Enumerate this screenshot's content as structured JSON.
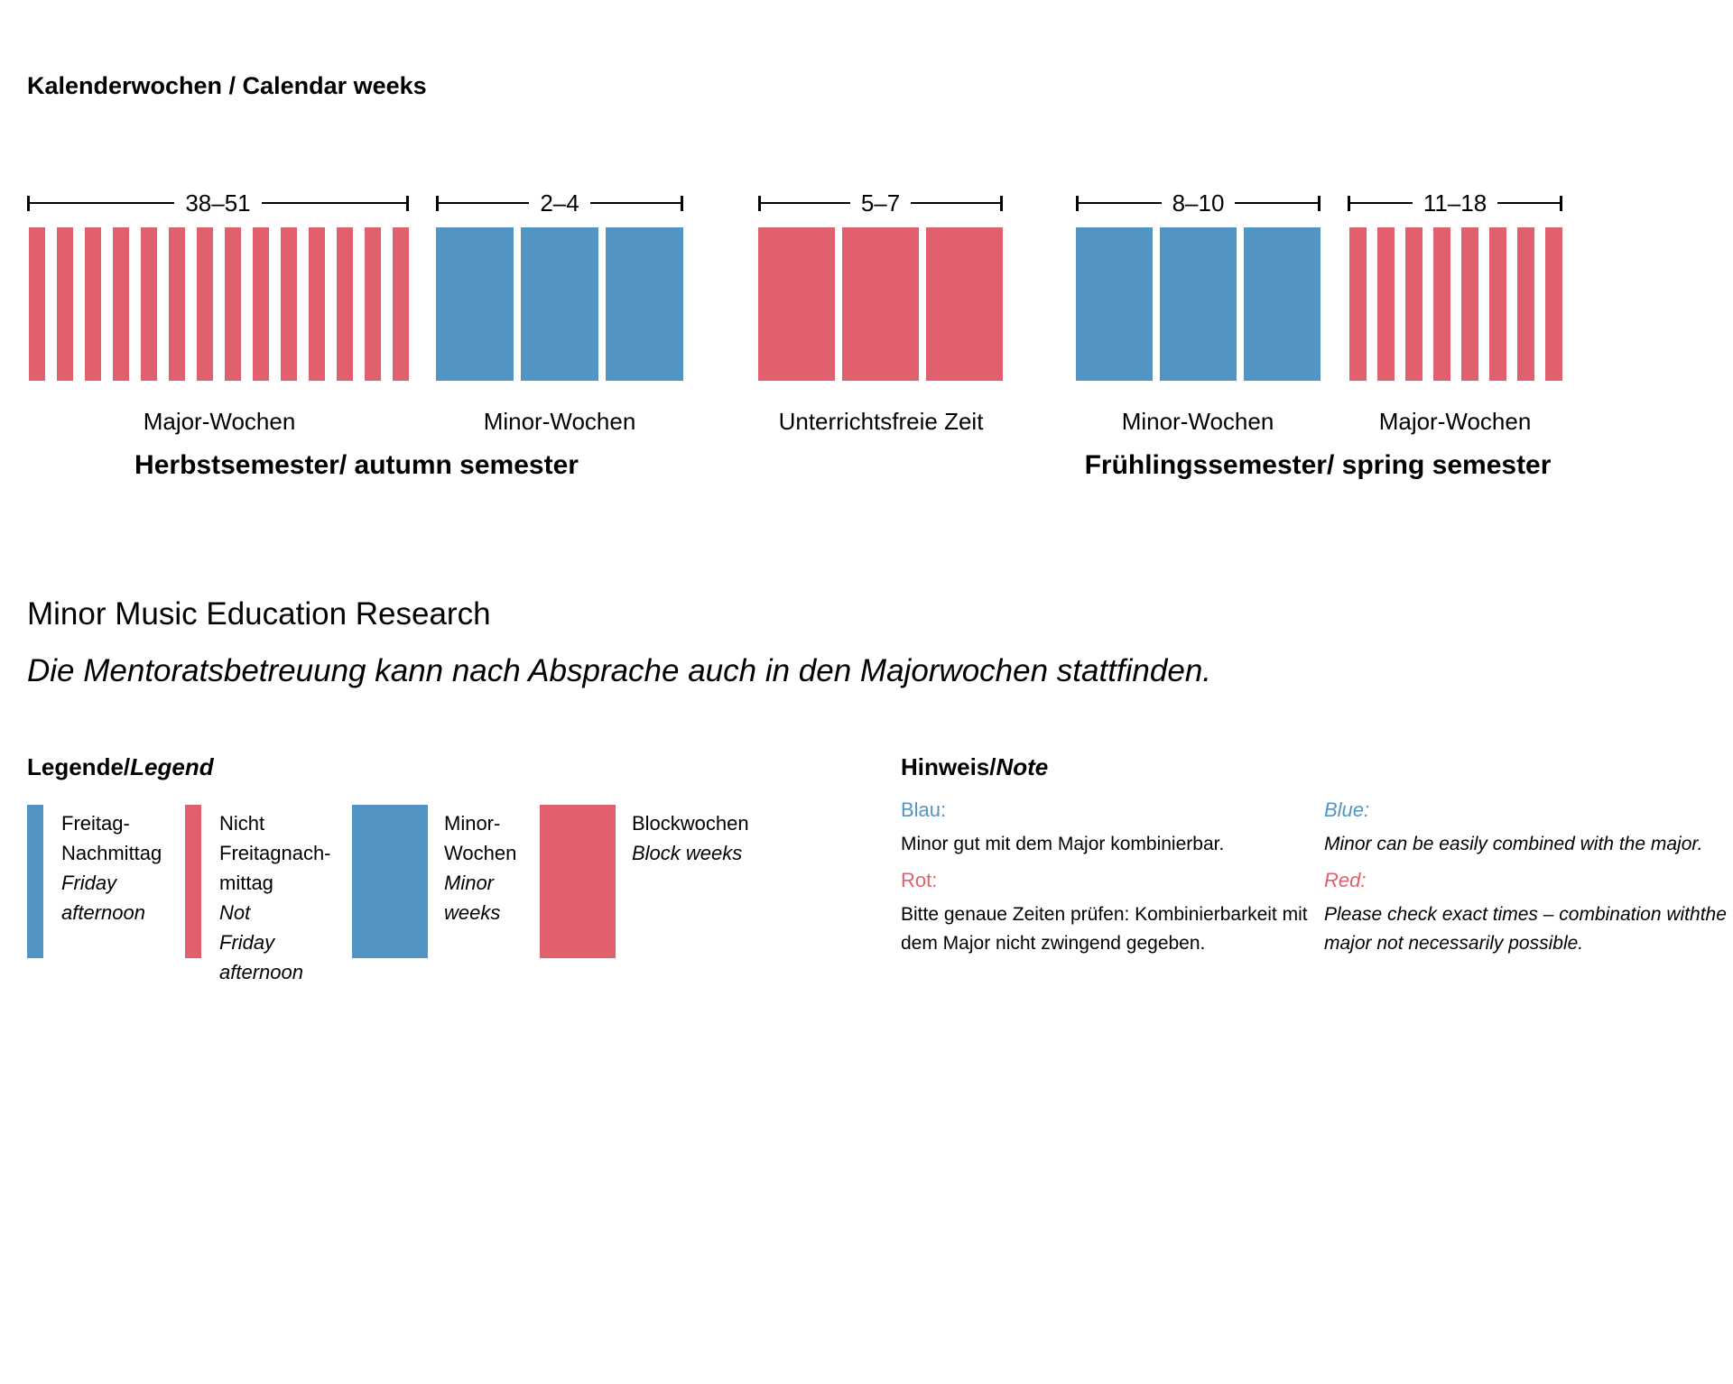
{
  "title": "Kalenderwochen / Calendar weeks",
  "figure": {
    "groups": [
      {
        "weeks": "38–51",
        "label": "Major-Wochen",
        "color": "red",
        "bars": 14
      },
      {
        "weeks": "2–4",
        "label": "Minor-Wochen",
        "color": "blue",
        "bars": 3
      },
      {
        "weeks": "5–7",
        "label": "Unterrichtsfreie Zeit",
        "color": "red",
        "bars": 3
      },
      {
        "weeks": "8–10",
        "label": "Minor-Wochen",
        "color": "blue",
        "bars": 3
      },
      {
        "weeks": "11–18",
        "label": "Major-Wochen",
        "color": "red",
        "bars": 8
      }
    ],
    "semesters": [
      {
        "label": "Herbstsemester/ autumn semester"
      },
      {
        "label": "Frühlingssemester/ spring semester"
      }
    ]
  },
  "heading": "Minor Music Education Research",
  "mentor_note": "Die Mentoratsbetreuung kann nach Absprache auch in den Majorwochen stattfinden.",
  "legend": {
    "header_de": "Legende/",
    "header_en": "Legend",
    "items": [
      {
        "swatch": "blue-thin",
        "de": [
          "Freitag-",
          "Nachmittag"
        ],
        "en": [
          "Friday",
          "afternoon"
        ]
      },
      {
        "swatch": "red-thin",
        "de": [
          "Nicht",
          "Freitagnach-",
          "mittag"
        ],
        "en": [
          "Not",
          "Friday",
          "afternoon"
        ]
      },
      {
        "swatch": "blue-wide",
        "de": [
          "Minor-",
          "Wochen"
        ],
        "en": [
          "Minor",
          "weeks"
        ]
      },
      {
        "swatch": "red-wide",
        "de": [
          "Blockwochen"
        ],
        "en": [
          "Block weeks"
        ]
      }
    ]
  },
  "hinweis": {
    "header_de": "Hinweis/",
    "header_en": "Note",
    "columns": [
      {
        "italic": false,
        "entries": [
          {
            "label": "Blau:",
            "color": "blue",
            "lines": [
              "Minor gut mit dem Major kombinierbar."
            ]
          },
          {
            "label": "Rot:",
            "color": "red",
            "lines": [
              "Bitte genaue Zeiten prüfen: Kombinierbarkeit mit",
              "dem Major nicht zwingend gegeben."
            ]
          }
        ]
      },
      {
        "italic": true,
        "entries": [
          {
            "label": "Blue:",
            "color": "blue",
            "lines": [
              "Minor can be easily combined with the major."
            ]
          },
          {
            "label": "Red:",
            "color": "red",
            "lines": [
              "Please check exact times – combination withthe",
              "major not necessarily possible."
            ]
          }
        ]
      }
    ]
  },
  "colors": {
    "red": "#e0606d",
    "blue": "#5295c4"
  }
}
